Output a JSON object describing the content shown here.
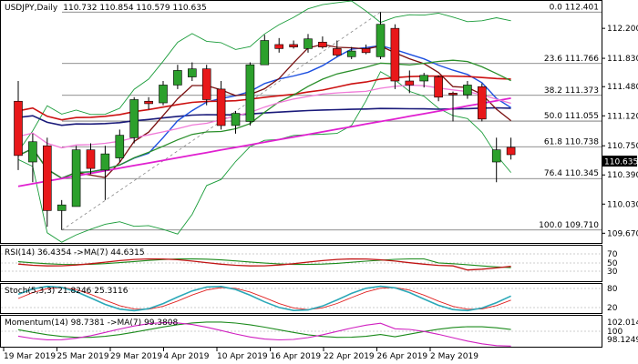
{
  "header": {
    "symbol_tf": "USDJPY,Daily",
    "ohlc": "110.732 110.854 110.579 110.635"
  },
  "price_axis": {
    "ticks": [
      "112.200",
      "111.830",
      "111.480",
      "111.120",
      "110.750",
      "110.390",
      "110.030",
      "109.670"
    ]
  },
  "last_price": "110.635",
  "date_axis": [
    "19 Mar 2019",
    "25 Mar 2019",
    "29 Mar 2019",
    "4 Apr 2019",
    "10 Apr 2019",
    "16 Apr 2019",
    "22 Apr 2019",
    "26 Apr 2019",
    "2 May 2019"
  ],
  "fibo": [
    {
      "label": "0.0 112.401",
      "value": 112.401
    },
    {
      "label": "23.6 111.766",
      "value": 111.766
    },
    {
      "label": "38.2 111.373",
      "value": 111.373
    },
    {
      "label": "50.0 111.055",
      "value": 111.055
    },
    {
      "label": "61.8 110.738",
      "value": 110.738
    },
    {
      "label": "76.4 110.345",
      "value": 110.345
    },
    {
      "label": "100.0 109.710",
      "value": 109.71
    }
  ],
  "rsi": {
    "title": "RSI(14) 36.4354  ->MA(7) 44.6315",
    "ticks": [
      "70",
      "50",
      "30"
    ]
  },
  "stoch": {
    "title": "Stoch(5,3,3) 21.8246 25.3116",
    "ticks": [
      "80",
      "20"
    ]
  },
  "momentum": {
    "title": "Momentum(14) 98.7381  ->MA(7) 99.3808",
    "ticks": [
      "102.0144",
      "100",
      "98.1249"
    ]
  },
  "colors": {
    "up": "#2ca02c",
    "down": "#e8181a",
    "bb": "#1a9c3a",
    "ma_navy": "#1a1a7a",
    "ma_blue": "#1c4fe0",
    "ma_red": "#cc1111",
    "ma_maroon": "#7a1010",
    "ma_green": "#2a8f2a",
    "ma_magenta": "#e020d0",
    "ma_pink": "#f07ad8"
  },
  "chart_data": {
    "type": "candlestick",
    "title": "USDJPY,Daily",
    "ylim": [
      109.55,
      112.55
    ],
    "ohlc": [
      {
        "o": 111.3,
        "h": 111.55,
        "l": 110.45,
        "c": 110.63
      },
      {
        "o": 110.55,
        "h": 110.9,
        "l": 110.3,
        "c": 110.8
      },
      {
        "o": 110.75,
        "h": 110.85,
        "l": 109.75,
        "c": 109.95
      },
      {
        "o": 109.95,
        "h": 110.08,
        "l": 109.71,
        "c": 110.02
      },
      {
        "o": 110.0,
        "h": 110.75,
        "l": 110.0,
        "c": 110.7
      },
      {
        "o": 110.7,
        "h": 110.78,
        "l": 110.4,
        "c": 110.47
      },
      {
        "o": 110.45,
        "h": 110.75,
        "l": 110.08,
        "c": 110.65
      },
      {
        "o": 110.6,
        "h": 110.95,
        "l": 110.55,
        "c": 110.88
      },
      {
        "o": 110.85,
        "h": 111.35,
        "l": 110.78,
        "c": 111.32
      },
      {
        "o": 111.3,
        "h": 111.35,
        "l": 111.2,
        "c": 111.27
      },
      {
        "o": 111.28,
        "h": 111.55,
        "l": 111.25,
        "c": 111.5
      },
      {
        "o": 111.5,
        "h": 111.75,
        "l": 111.45,
        "c": 111.68
      },
      {
        "o": 111.6,
        "h": 111.78,
        "l": 111.55,
        "c": 111.7
      },
      {
        "o": 111.7,
        "h": 111.75,
        "l": 111.25,
        "c": 111.32
      },
      {
        "o": 111.45,
        "h": 111.55,
        "l": 110.95,
        "c": 111.0
      },
      {
        "o": 111.0,
        "h": 111.18,
        "l": 110.9,
        "c": 111.15
      },
      {
        "o": 111.05,
        "h": 111.78,
        "l": 111.0,
        "c": 111.75
      },
      {
        "o": 111.75,
        "h": 112.12,
        "l": 111.75,
        "c": 112.05
      },
      {
        "o": 112.0,
        "h": 112.08,
        "l": 111.9,
        "c": 111.95
      },
      {
        "o": 112.0,
        "h": 112.05,
        "l": 111.95,
        "c": 111.97
      },
      {
        "o": 111.95,
        "h": 112.13,
        "l": 111.9,
        "c": 112.07
      },
      {
        "o": 112.03,
        "h": 112.1,
        "l": 111.95,
        "c": 111.97
      },
      {
        "o": 111.95,
        "h": 112.05,
        "l": 111.85,
        "c": 111.87
      },
      {
        "o": 111.85,
        "h": 111.97,
        "l": 111.82,
        "c": 111.92
      },
      {
        "o": 111.95,
        "h": 112.0,
        "l": 111.88,
        "c": 111.9
      },
      {
        "o": 111.85,
        "h": 112.4,
        "l": 111.82,
        "c": 112.25
      },
      {
        "o": 112.2,
        "h": 112.25,
        "l": 111.45,
        "c": 111.55
      },
      {
        "o": 111.55,
        "h": 111.68,
        "l": 111.4,
        "c": 111.5
      },
      {
        "o": 111.55,
        "h": 111.65,
        "l": 111.47,
        "c": 111.62
      },
      {
        "o": 111.6,
        "h": 111.62,
        "l": 111.3,
        "c": 111.35
      },
      {
        "o": 111.4,
        "h": 111.42,
        "l": 111.05,
        "c": 111.38
      },
      {
        "o": 111.38,
        "h": 111.55,
        "l": 111.33,
        "c": 111.5
      },
      {
        "o": 111.48,
        "h": 111.52,
        "l": 111.05,
        "c": 111.08
      },
      {
        "o": 110.55,
        "h": 110.85,
        "l": 110.3,
        "c": 110.7
      },
      {
        "o": 110.73,
        "h": 110.85,
        "l": 110.58,
        "c": 110.64
      }
    ]
  }
}
